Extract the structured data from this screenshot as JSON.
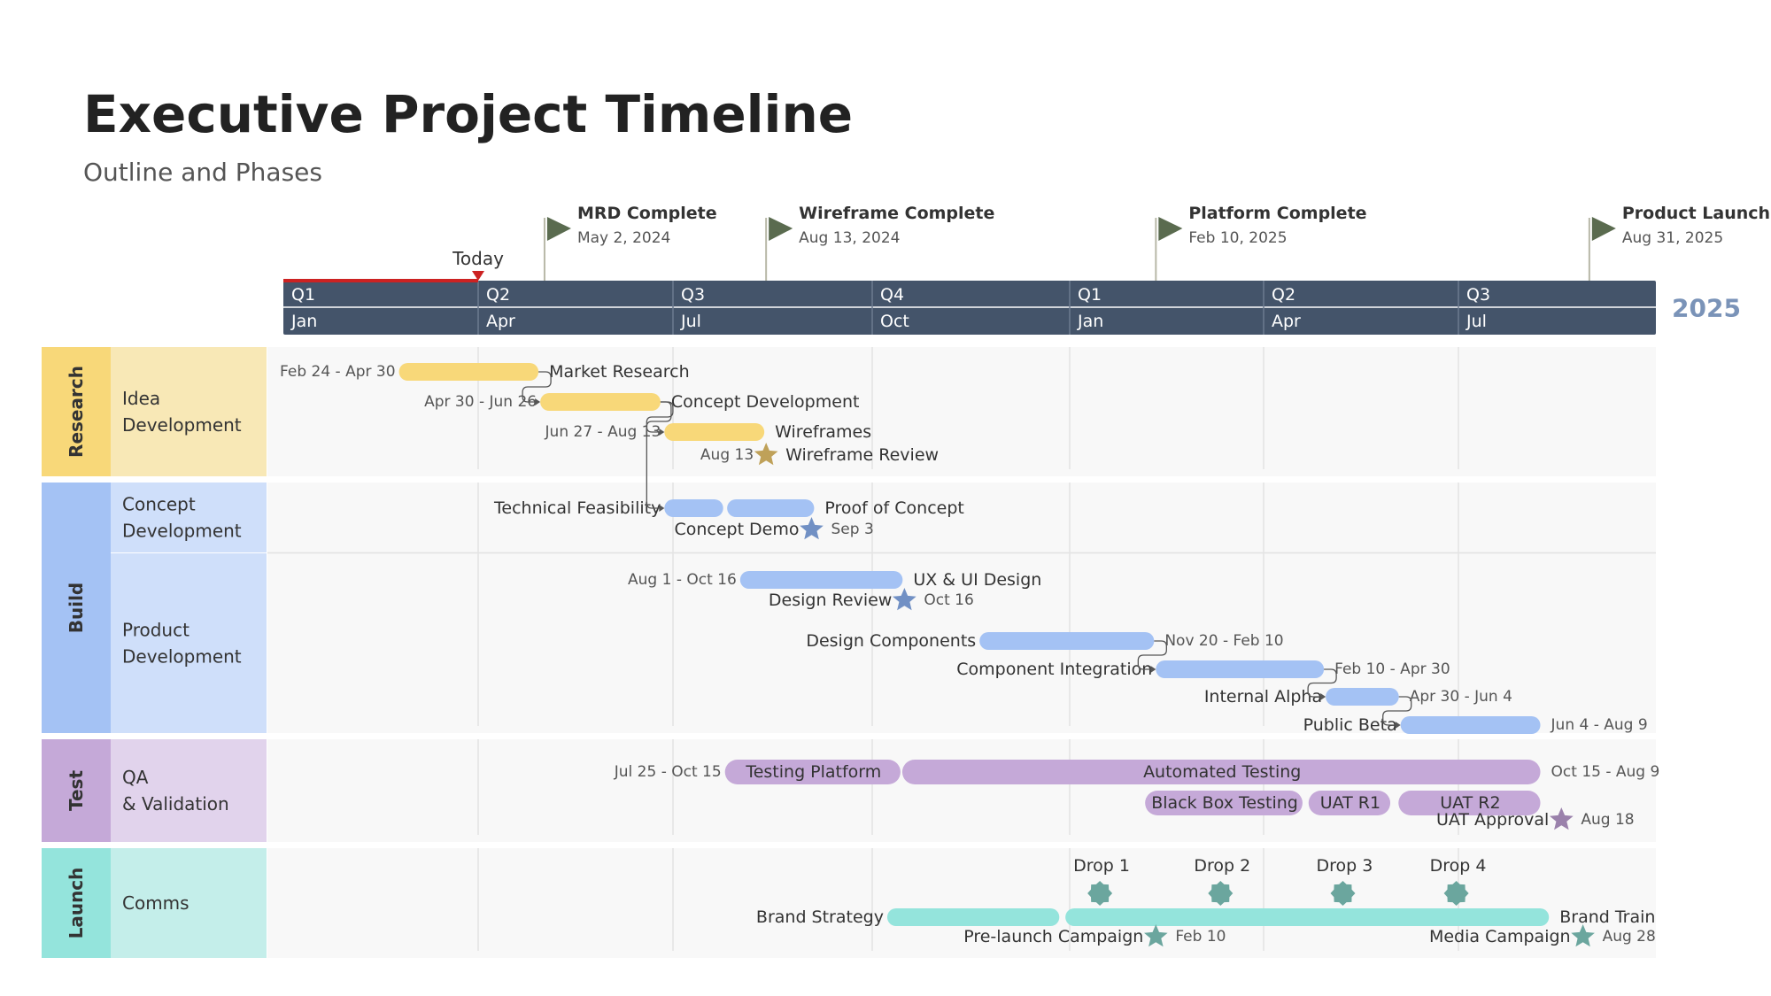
{
  "header": {
    "title": "Executive Project Timeline",
    "subtitle": "Outline and Phases"
  },
  "timeline": {
    "today_label": "Today",
    "year_label": "2025",
    "quarters": [
      "Q1",
      "Q2",
      "Q3",
      "Q4",
      "Q1",
      "Q2",
      "Q3"
    ],
    "months": [
      "Jan",
      "Apr",
      "Jul",
      "Oct",
      "Jan",
      "Apr",
      "Jul"
    ]
  },
  "colors": {
    "header_bar": "#44546a",
    "today": "#cc2222",
    "flag": "#5a6b4f",
    "year": "#7a93b8",
    "research": "#f8d879",
    "build": "#a4c2f4",
    "test": "#c5a9d8",
    "launch": "#94e4dc"
  },
  "milestones": [
    {
      "name": "MRD Complete",
      "date": "May 2, 2024"
    },
    {
      "name": "Wireframe Complete",
      "date": "Aug 13, 2024"
    },
    {
      "name": "Platform Complete",
      "date": "Feb 10, 2025"
    },
    {
      "name": "Product Launch",
      "date": "Aug 31, 2025"
    }
  ],
  "groups": [
    {
      "name": "Research",
      "swimlanes": [
        "Idea Development"
      ]
    },
    {
      "name": "Build",
      "swimlanes": [
        "Concept Development",
        "Product Development"
      ]
    },
    {
      "name": "Test",
      "swimlanes": [
        "QA & Validation"
      ]
    },
    {
      "name": "Launch",
      "swimlanes": [
        "Comms"
      ]
    }
  ],
  "chart_data": {
    "type": "gantt",
    "x_range": [
      "2024-01-01",
      "2025-10-15"
    ],
    "tasks": [
      {
        "group": "Research",
        "name": "Market Research",
        "start": "2024-02-24",
        "end": "2024-04-30",
        "date_label": "Feb 24 - Apr 30"
      },
      {
        "group": "Research",
        "name": "Concept Development",
        "start": "2024-04-30",
        "end": "2024-06-26",
        "date_label": "Apr 30 - Jun 26"
      },
      {
        "group": "Research",
        "name": "Wireframes",
        "start": "2024-06-27",
        "end": "2024-08-13",
        "date_label": "Jun 27 - Aug 13"
      },
      {
        "group": "Build",
        "name": "Technical Feasibility",
        "start": "2024-06-27",
        "end": "2024-07-25"
      },
      {
        "group": "Build",
        "name": "Proof of Concept",
        "start": "2024-07-26",
        "end": "2024-09-05"
      },
      {
        "group": "Build",
        "name": "UX & UI Design",
        "start": "2024-08-01",
        "end": "2024-10-16",
        "date_label": "Aug 1 - Oct 16"
      },
      {
        "group": "Build",
        "name": "Design Components",
        "start": "2024-11-20",
        "end": "2025-02-10",
        "date_label": "Nov 20 - Feb 10"
      },
      {
        "group": "Build",
        "name": "Component Integration",
        "start": "2025-02-10",
        "end": "2025-04-30",
        "date_label": "Feb 10 - Apr 30"
      },
      {
        "group": "Build",
        "name": "Internal Alpha",
        "start": "2025-04-30",
        "end": "2025-06-04",
        "date_label": "Apr 30 - Jun 4"
      },
      {
        "group": "Build",
        "name": "Public Beta",
        "start": "2025-06-04",
        "end": "2025-08-09",
        "date_label": "Jun 4 - Aug 9"
      },
      {
        "group": "Test",
        "name": "Testing Platform",
        "start": "2024-07-25",
        "end": "2024-10-15",
        "date_label": "Jul 25 - Oct 15"
      },
      {
        "group": "Test",
        "name": "Automated Testing",
        "start": "2024-10-15",
        "end": "2025-08-09",
        "date_label": "Oct 15 - Aug 9"
      },
      {
        "group": "Test",
        "name": "Black Box Testing",
        "start": "2025-02-05",
        "end": "2025-04-20"
      },
      {
        "group": "Test",
        "name": "UAT R1",
        "start": "2025-04-22",
        "end": "2025-05-31"
      },
      {
        "group": "Test",
        "name": "UAT R2",
        "start": "2025-06-03",
        "end": "2025-08-09"
      },
      {
        "group": "Launch",
        "name": "Brand Strategy",
        "start": "2024-10-08",
        "end": "2024-12-28"
      },
      {
        "group": "Launch",
        "name": "Brand Train",
        "start": "2024-12-30",
        "end": "2025-08-13"
      }
    ],
    "events": [
      {
        "name": "Wireframe Review",
        "date": "2024-08-13",
        "date_label": "Aug 13"
      },
      {
        "name": "Concept Demo",
        "date": "2024-09-03",
        "date_label": "Sep 3"
      },
      {
        "name": "Design Review",
        "date": "2024-10-16",
        "date_label": "Oct 16"
      },
      {
        "name": "UAT Approval",
        "date": "2025-08-18",
        "date_label": "Aug 18"
      },
      {
        "name": "Pre-launch Campaign",
        "date": "2025-02-10",
        "date_label": "Feb 10"
      },
      {
        "name": "Media Campaign",
        "date": "2025-08-28",
        "date_label": "Aug 28"
      }
    ],
    "drops": [
      {
        "name": "Drop 1",
        "date": "2025-01-15"
      },
      {
        "name": "Drop 2",
        "date": "2025-03-12"
      },
      {
        "name": "Drop 3",
        "date": "2025-05-08"
      },
      {
        "name": "Drop 4",
        "date": "2025-06-30"
      }
    ],
    "today": "2024-04-01"
  }
}
